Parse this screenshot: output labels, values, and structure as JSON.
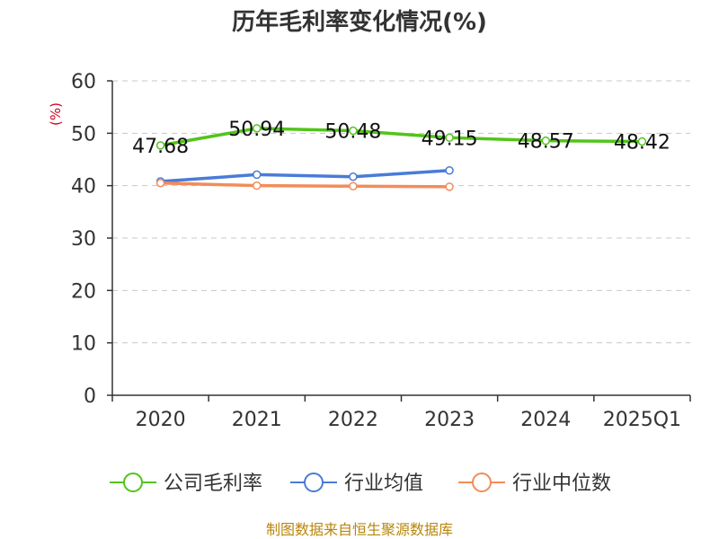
{
  "title": "历年毛利率变化情况(%)",
  "source": "制图数据来自恒生聚源数据库",
  "chart_data": {
    "type": "line",
    "title": "历年毛利率变化情况(%)",
    "ylabel": "(%)",
    "categories": [
      "2020",
      "2021",
      "2022",
      "2023",
      "2024",
      "2025Q1"
    ],
    "ylim": [
      0,
      60
    ],
    "yticks": [
      0,
      10,
      20,
      30,
      40,
      50,
      60
    ],
    "grid": true,
    "legend_position": "bottom",
    "series": [
      {
        "name": "公司毛利率",
        "color": "#52c41a",
        "values": [
          47.68,
          50.94,
          50.48,
          49.15,
          48.57,
          48.42
        ],
        "labels": [
          "47.68",
          "50.94",
          "50.48",
          "49.15",
          "48.57",
          "48.42"
        ]
      },
      {
        "name": "行业均值",
        "color": "#4a7bd8",
        "values": [
          40.8,
          42.1,
          41.7,
          42.9,
          null,
          null
        ]
      },
      {
        "name": "行业中位数",
        "color": "#f28c5a",
        "values": [
          40.5,
          40.0,
          39.9,
          39.8,
          null,
          null
        ]
      }
    ]
  }
}
